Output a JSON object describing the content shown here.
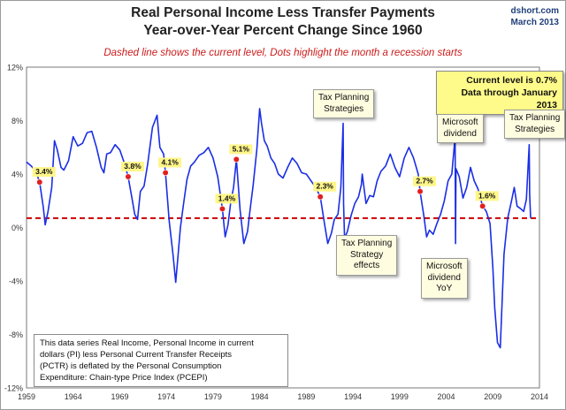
{
  "chart_data": {
    "type": "line",
    "title": "Real Personal Income Less Transfer Payments",
    "title_line2": "Year-over-Year Percent Change Since 1960",
    "subtitle": "Dashed line shows the current level, Dots highlight the month a recession starts",
    "source": "dshort.com",
    "date": "March 2013",
    "xlabel": "",
    "ylabel": "",
    "xlim": [
      1959,
      2014
    ],
    "ylim": [
      -12,
      12
    ],
    "x_ticks": [
      "1959",
      "1964",
      "1969",
      "1974",
      "1979",
      "1984",
      "1989",
      "1994",
      "1999",
      "2004",
      "2009",
      "2014"
    ],
    "y_ticks": [
      "12%",
      "8%",
      "4%",
      "0%",
      "-4%",
      "-8%",
      "-12%"
    ],
    "grid": true,
    "legend": "none",
    "current_level": 0.7,
    "colors": {
      "line": "#1a2ee6",
      "dashed": "#cc0000",
      "dots": "#e02020",
      "recession": "#cfcfcf",
      "grid": "#bfbfbf"
    },
    "recessions": [
      [
        1960.3,
        1961.1
      ],
      [
        1969.9,
        1970.9
      ],
      [
        1973.9,
        1975.2
      ],
      [
        1980.0,
        1980.5
      ],
      [
        1981.5,
        1982.9
      ],
      [
        1990.5,
        1991.2
      ],
      [
        2001.2,
        2001.9
      ],
      [
        2007.9,
        2009.5
      ]
    ],
    "series": [
      {
        "x": [
          1959.0,
          1959.5,
          1960.0,
          1960.4,
          1960.8,
          1961.0,
          1961.3,
          1961.7,
          1962.0,
          1962.3,
          1962.7,
          1963.0,
          1963.5,
          1964.0,
          1964.5,
          1965.0,
          1965.5,
          1966.0,
          1966.5,
          1967.0,
          1967.3,
          1967.6,
          1968.0,
          1968.5,
          1969.0,
          1969.5,
          1969.9,
          1970.3,
          1970.6,
          1970.9,
          1971.2,
          1971.6,
          1972.0,
          1972.5,
          1973.0,
          1973.3,
          1973.7,
          1973.9,
          1974.3,
          1974.7,
          1975.0,
          1975.2,
          1975.5,
          1975.8,
          1976.2,
          1976.6,
          1977.0,
          1977.5,
          1978.0,
          1978.5,
          1979.0,
          1979.5,
          1980.0,
          1980.3,
          1980.6,
          1980.9,
          1981.2,
          1981.5,
          1981.9,
          1982.3,
          1982.7,
          1983.0,
          1983.3,
          1983.7,
          1984.0,
          1984.2,
          1984.5,
          1984.8,
          1985.2,
          1985.6,
          1986.0,
          1986.5,
          1987.0,
          1987.5,
          1988.0,
          1988.5,
          1989.0,
          1989.5,
          1990.0,
          1990.5,
          1990.9,
          1991.3,
          1991.7,
          1992.0,
          1992.4,
          1992.7,
          1992.95,
          1993.0,
          1993.1,
          1993.4,
          1993.8,
          1994.2,
          1994.6,
          1994.9,
          1995.0,
          1995.4,
          1995.8,
          1996.2,
          1996.6,
          1997.0,
          1997.5,
          1998.0,
          1998.5,
          1999.0,
          1999.5,
          2000.0,
          2000.5,
          2001.0,
          2001.2,
          2001.6,
          2001.9,
          2002.2,
          2002.6,
          2003.0,
          2003.4,
          2003.8,
          2004.2,
          2004.6,
          2004.95,
          2005.0,
          2005.05,
          2005.4,
          2005.8,
          2006.2,
          2006.6,
          2007.0,
          2007.4,
          2007.9,
          2008.3,
          2008.7,
          2009.0,
          2009.2,
          2009.5,
          2009.8,
          2010.2,
          2010.6,
          2011.0,
          2011.3,
          2011.6,
          2012.0,
          2012.3,
          2012.6,
          2012.9,
          2012.95,
          2013.05
        ],
        "values": [
          4.9,
          4.6,
          4.2,
          3.4,
          1.5,
          0.2,
          1.2,
          3.0,
          6.5,
          5.8,
          4.5,
          4.3,
          5.0,
          6.8,
          6.1,
          6.3,
          7.1,
          7.2,
          6.0,
          4.5,
          4.1,
          5.5,
          5.6,
          6.2,
          5.8,
          4.8,
          3.8,
          2.2,
          1.0,
          0.6,
          2.7,
          3.1,
          4.8,
          7.5,
          8.4,
          6.0,
          5.5,
          4.1,
          0.5,
          -2.0,
          -4.1,
          -2.5,
          0.0,
          1.6,
          3.6,
          4.6,
          4.9,
          5.4,
          5.6,
          6.0,
          5.2,
          3.8,
          1.4,
          -0.7,
          0.2,
          1.9,
          3.0,
          5.1,
          1.3,
          -1.2,
          -0.3,
          1.5,
          3.2,
          5.9,
          8.9,
          7.8,
          6.5,
          6.1,
          5.2,
          4.8,
          4.0,
          3.7,
          4.5,
          5.2,
          4.8,
          4.1,
          4.0,
          3.5,
          3.0,
          2.3,
          0.5,
          -1.2,
          -0.4,
          0.6,
          1.0,
          3.0,
          7.8,
          1.8,
          -0.8,
          -0.3,
          0.9,
          1.8,
          2.3,
          3.2,
          4.0,
          1.8,
          2.4,
          2.3,
          3.5,
          4.2,
          4.6,
          5.5,
          4.5,
          3.8,
          5.2,
          6.0,
          5.2,
          4.0,
          2.7,
          0.9,
          -0.7,
          -0.2,
          -0.5,
          0.3,
          1.0,
          2.0,
          3.5,
          4.0,
          6.8,
          -1.2,
          4.4,
          3.8,
          2.2,
          3.0,
          4.5,
          3.5,
          2.9,
          1.6,
          1.2,
          0.3,
          -3.0,
          -6.0,
          -8.6,
          -9.0,
          -2.0,
          0.7,
          2.0,
          3.0,
          1.6,
          1.4,
          1.2,
          2.1,
          6.2,
          2.5,
          0.7
        ]
      }
    ],
    "recession_dots": [
      {
        "x": 1960.4,
        "y": 3.4,
        "label": "3.4%"
      },
      {
        "x": 1969.9,
        "y": 3.8,
        "label": "3.8%"
      },
      {
        "x": 1973.9,
        "y": 4.1,
        "label": "4.1%"
      },
      {
        "x": 1980.0,
        "y": 1.4,
        "label": "1.4%"
      },
      {
        "x": 1981.5,
        "y": 5.1,
        "label": "5.1%"
      },
      {
        "x": 1990.5,
        "y": 2.3,
        "label": "2.3%"
      },
      {
        "x": 2001.2,
        "y": 2.7,
        "label": "2.7%"
      },
      {
        "x": 2007.9,
        "y": 1.6,
        "label": "1.6%"
      }
    ],
    "annotations": {
      "tax_planning_1": [
        "Tax Planning",
        "Strategies"
      ],
      "tax_planning_effects": [
        "Tax Planning",
        "Strategy",
        "effects"
      ],
      "microsoft_dividend": [
        "Microsoft",
        "dividend"
      ],
      "microsoft_yoy": [
        "Microsoft",
        "dividend",
        "YoY"
      ],
      "tax_planning_2": [
        "Tax Planning",
        "Strategies"
      ],
      "current_level": [
        "Current level is 0.7%",
        "Data through January 2013"
      ],
      "note": [
        "This data series  Real Income, Personal Income in current",
        "dollars  (PI) less Personal Current Transfer Receipts",
        "(PCTR) is deflated by the Personal Consumption",
        "Expenditure: Chain-type Price Index (PCEPI)"
      ]
    }
  }
}
